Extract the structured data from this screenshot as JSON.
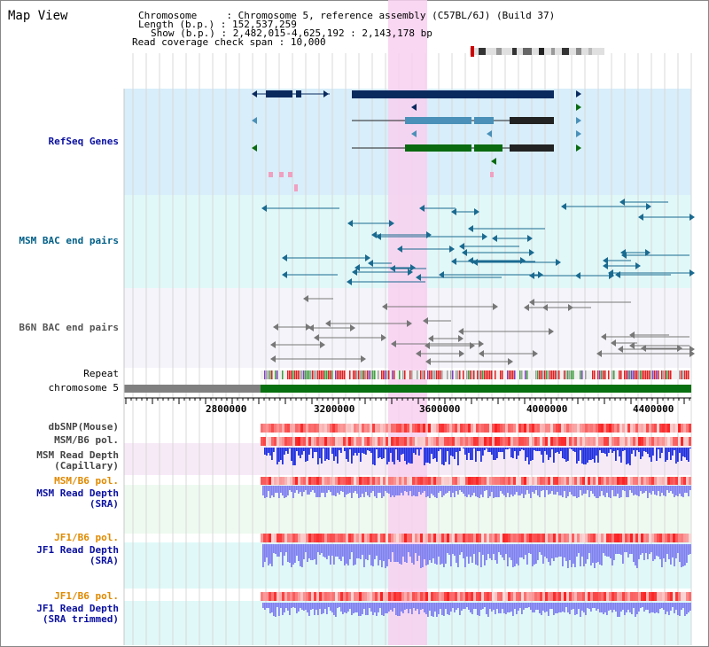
{
  "title": "Map View",
  "info": {
    "chromosome_label": "Chromosome",
    "chromosome_value": "Chromosome 5, reference assembly (C57BL/6J) (Build 37)",
    "length_label": "Length (b.p.)",
    "length_value": "152,537,259",
    "show_label": "Show (b.p.)",
    "show_value": "2,482,015-4,625,192 : 2,143,178 bp",
    "span_label": "Read coverage check span",
    "span_value": "10,000"
  },
  "tracks": {
    "refseq": "RefSeq Genes",
    "msm_bac": "MSM BAC end pairs",
    "b6n_bac": "B6N BAC end pairs",
    "repeat": "Repeat",
    "chromosome": "chromosome 5",
    "dbsnp": "dbSNP(Mouse)",
    "msm_b6_pol_1": "MSM/B6 pol.",
    "msm_depth_cap_1": "MSM Read Depth",
    "msm_depth_cap_2": "(Capillary)",
    "msm_b6_pol_2": "MSM/B6 pol.",
    "msm_depth_sra_1": "MSM Read Depth",
    "msm_depth_sra_2": "(SRA)",
    "jf1_b6_pol_1": "JF1/B6 pol.",
    "jf1_depth_sra_1": "JF1 Read Depth",
    "jf1_depth_sra_2": "(SRA)",
    "jf1_b6_pol_2": "JF1/B6 pol.",
    "jf1_depth_trim_1": "JF1 Read Depth",
    "jf1_depth_trim_2": "(SRA trimmed)"
  },
  "axis": {
    "ticks": [
      "2800000",
      "3200000",
      "3600000",
      "4000000",
      "4400000"
    ]
  },
  "colors": {
    "refseq_bg": "#d8eefa",
    "msm_bg": "#e0f8f8",
    "b6n_bg": "#f4f4fa",
    "highlight": "#f8d0f0",
    "gene_navy": "#0a2a5e",
    "gene_steel": "#4a90b8",
    "gene_green": "#0a6a10",
    "bac_teal": "#1a6a90",
    "bac_gray": "#777777",
    "chrom_green": "#087010",
    "chrom_gray": "#808080",
    "depth_blue": "#2030e0",
    "depth_light": "#8080f0"
  }
}
